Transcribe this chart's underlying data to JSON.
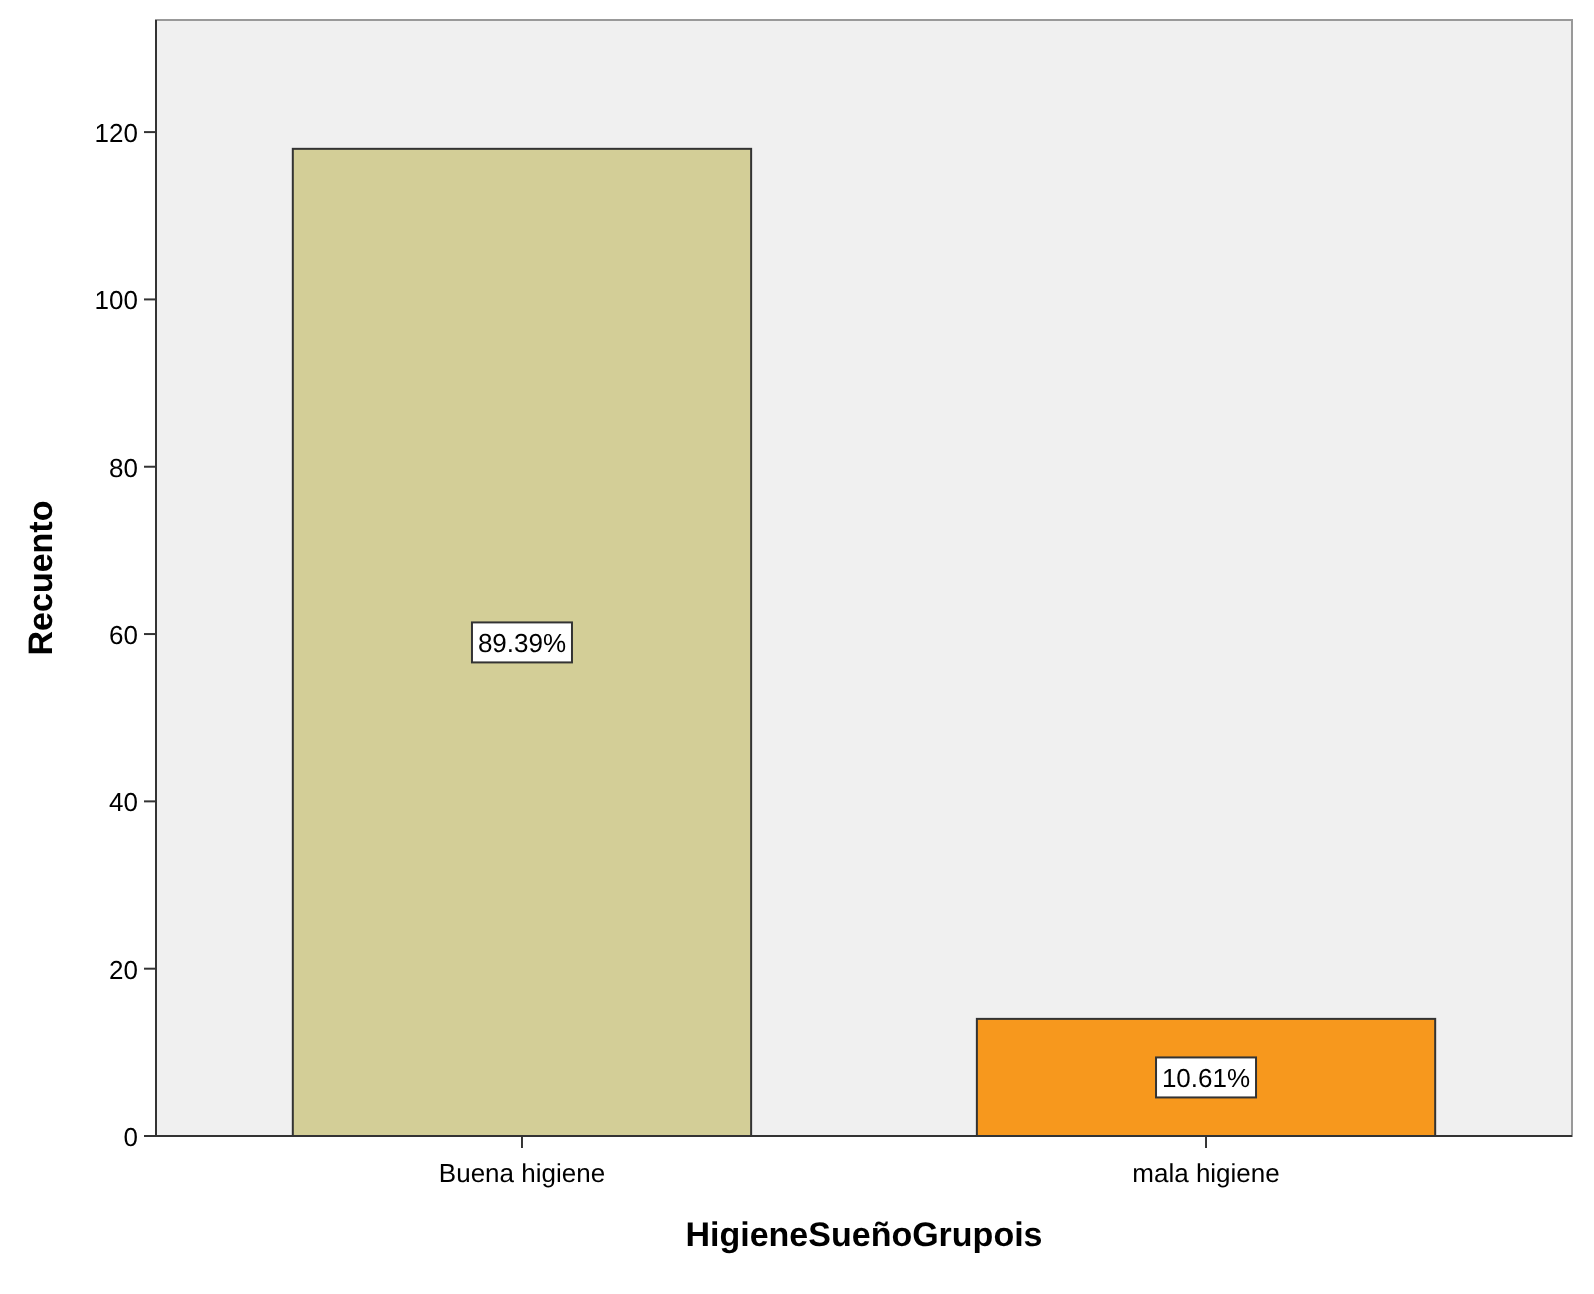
{
  "chart_data": {
    "type": "bar",
    "xlabel": "HigieneSueñoGrupois",
    "ylabel": "Recuento",
    "categories": [
      "Buena higiene",
      "mala higiene"
    ],
    "values": [
      118,
      14
    ],
    "colors": [
      "#d3ce97",
      "#f7981d"
    ],
    "annotations": [
      "89.39%",
      "10.61%"
    ],
    "ylim": [
      0,
      133.4
    ],
    "yticks": [
      0,
      20,
      40,
      60,
      80,
      100,
      120
    ],
    "grid": false,
    "legend": false
  }
}
